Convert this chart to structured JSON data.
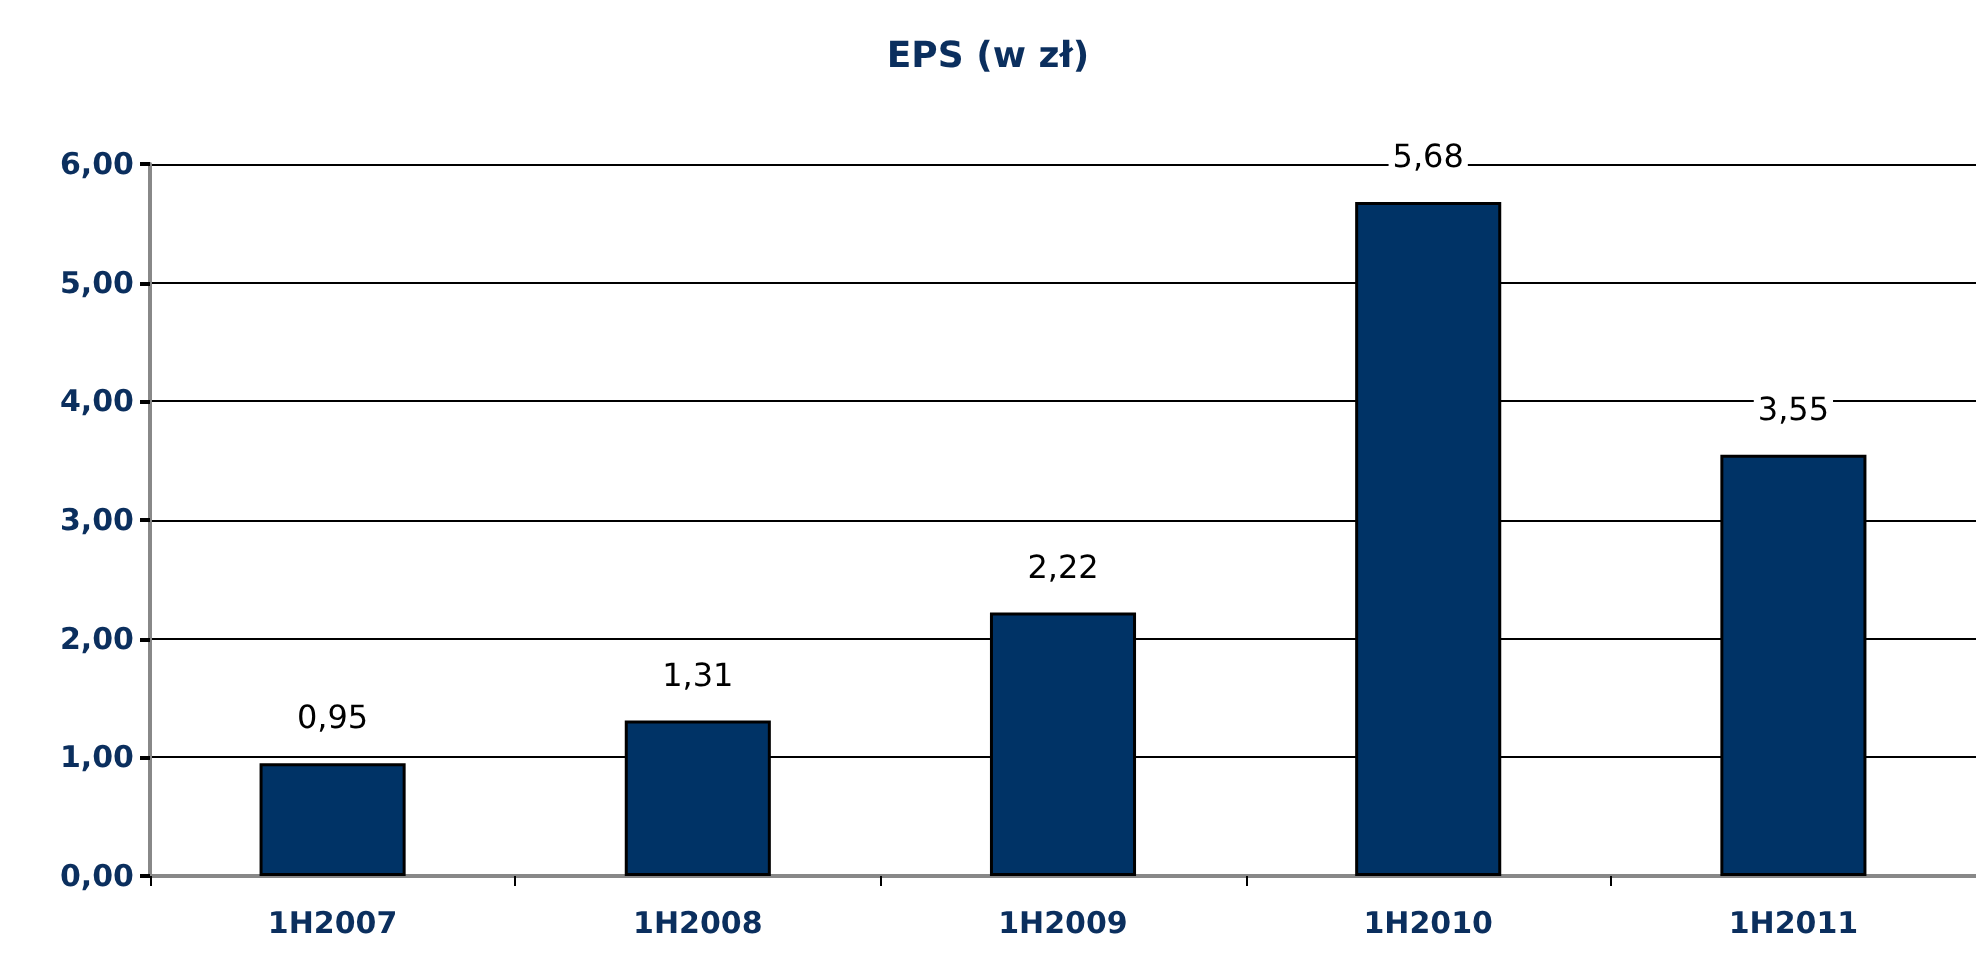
{
  "chart_data": {
    "type": "bar",
    "title": "EPS (w zł)",
    "categories": [
      "1H2007",
      "1H2008",
      "1H2009",
      "1H2010",
      "1H2011"
    ],
    "values": [
      0.95,
      1.31,
      2.22,
      5.68,
      3.55
    ],
    "value_labels": [
      "0,95",
      "1,31",
      "2,22",
      "5,68",
      "3,55"
    ],
    "color": "#003366",
    "ylim": [
      0,
      6
    ],
    "yticks": [
      {
        "value": 0,
        "label": "0,00"
      },
      {
        "value": 1,
        "label": "1,00"
      },
      {
        "value": 2,
        "label": "2,00"
      },
      {
        "value": 3,
        "label": "3,00"
      },
      {
        "value": 4,
        "label": "4,00"
      },
      {
        "value": 5,
        "label": "5,00"
      },
      {
        "value": 6,
        "label": "6,00"
      }
    ],
    "grid": "y"
  }
}
